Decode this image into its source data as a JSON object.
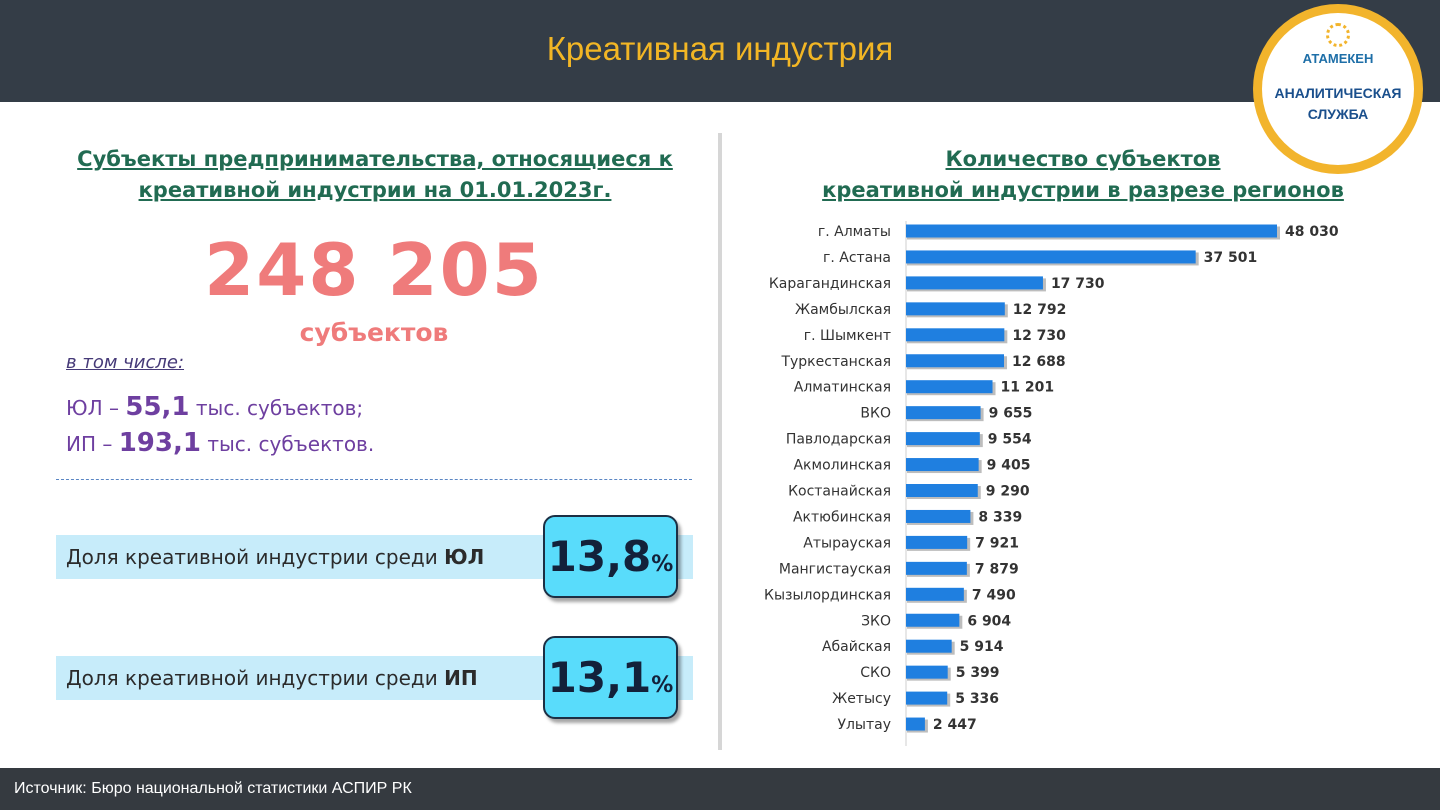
{
  "header": {
    "title": "Креативная индустрия"
  },
  "logo": {
    "name": "АТАМЕКЕН",
    "service_line1": "АНАЛИТИЧЕСКАЯ",
    "service_line2": "СЛУЖБА"
  },
  "left": {
    "heading_line1": "Субъекты предпринимательства, относящиеся к",
    "heading_line2": "креативной индустрии на 01.01.2023г.",
    "total": "248 205",
    "total_unit": "субъектов",
    "including": "в том числе:",
    "ul_prefix": "ЮЛ –",
    "ul_value": "55,1",
    "ul_suffix": "тыс. субъектов;",
    "ip_prefix": "ИП –",
    "ip_value": "193,1",
    "ip_suffix": "тыс. субъектов."
  },
  "shares": [
    {
      "label": "Доля креативной индустрии среди",
      "label_bold": "ЮЛ",
      "value": "13,8",
      "unit": "%"
    },
    {
      "label": "Доля креативной индустрии среди",
      "label_bold": "ИП",
      "value": "13,1",
      "unit": "%"
    }
  ],
  "right": {
    "heading_line1": "Количество субъектов",
    "heading_line2": "креативной индустрии в разрезе регионов"
  },
  "chart_data": {
    "type": "bar",
    "orientation": "horizontal",
    "categories": [
      "г. Алматы",
      "г. Астана",
      "Карагандинская",
      "Жамбылская",
      "г. Шымкент",
      "Туркестанская",
      "Алматинская",
      "ВКО",
      "Павлодарская",
      "Акмолинская",
      "Костанайская",
      "Актюбинская",
      "Атырауская",
      "Мангистауская",
      "Кызылординская",
      "ЗКО",
      "Абайская",
      "СКО",
      "Жетысу",
      "Улытау"
    ],
    "values": [
      48030,
      37501,
      17730,
      12792,
      12730,
      12688,
      11201,
      9655,
      9554,
      9405,
      9290,
      8339,
      7921,
      7879,
      7490,
      6904,
      5914,
      5399,
      5336,
      2447
    ],
    "value_labels": [
      "48 030",
      "37 501",
      "17 730",
      "12 792",
      "12 730",
      "12 688",
      "11 201",
      "9 655",
      "9 554",
      "9 405",
      "9 290",
      "8 339",
      "7 921",
      "7 879",
      "7 490",
      "6 904",
      "5 914",
      "5 399",
      "5 336",
      "2 447"
    ],
    "bar_color": "#1f7fe0",
    "xlim": [
      0,
      48030
    ]
  },
  "footer": {
    "source": "Источник: Бюро национальной  статистики  АСПИР РК"
  }
}
